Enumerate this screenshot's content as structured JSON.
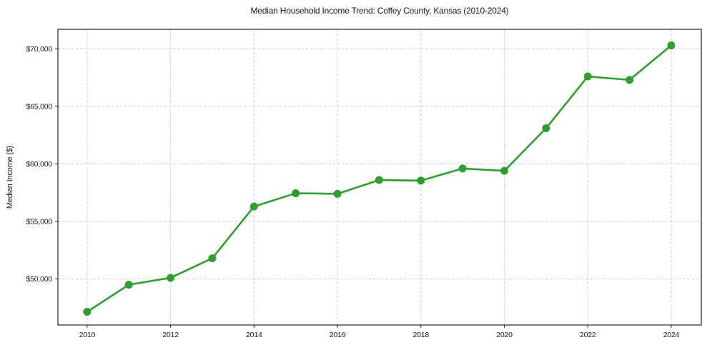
{
  "chart_data": {
    "type": "line",
    "title": "Median Household Income Trend: Coffey County, Kansas (2010-2024)",
    "xlabel": "",
    "ylabel": "Median Income ($)",
    "series": [
      {
        "name": "Median Household Income",
        "x": [
          2010,
          2011,
          2012,
          2013,
          2014,
          2015,
          2016,
          2017,
          2018,
          2019,
          2020,
          2021,
          2022,
          2023,
          2024
        ],
        "values": [
          47150,
          49500,
          50100,
          51800,
          56300,
          57450,
          57400,
          58600,
          58550,
          59600,
          59400,
          63100,
          67600,
          67300,
          70300
        ]
      }
    ],
    "xlim": [
      2009.3,
      2024.72
    ],
    "ylim": [
      46000,
      71700
    ],
    "xticks": [
      2010,
      2012,
      2014,
      2016,
      2018,
      2020,
      2022,
      2024
    ],
    "xtick_labels": [
      "2010",
      "2012",
      "2014",
      "2016",
      "2018",
      "2020",
      "2022",
      "2024"
    ],
    "yticks": [
      50000,
      55000,
      60000,
      65000,
      70000
    ],
    "ytick_labels": [
      "$50,000",
      "$55,000",
      "$60,000",
      "$65,000",
      "$70,000"
    ],
    "grid": "dashed",
    "legend": "none",
    "marker": "circle",
    "colors": {
      "line": "#2ca02c",
      "marker": "#2ca02c",
      "grid": "#cfcfcf",
      "axis_frame": "#262626",
      "text": "#1a1a1a",
      "background": "#ffffff"
    }
  }
}
